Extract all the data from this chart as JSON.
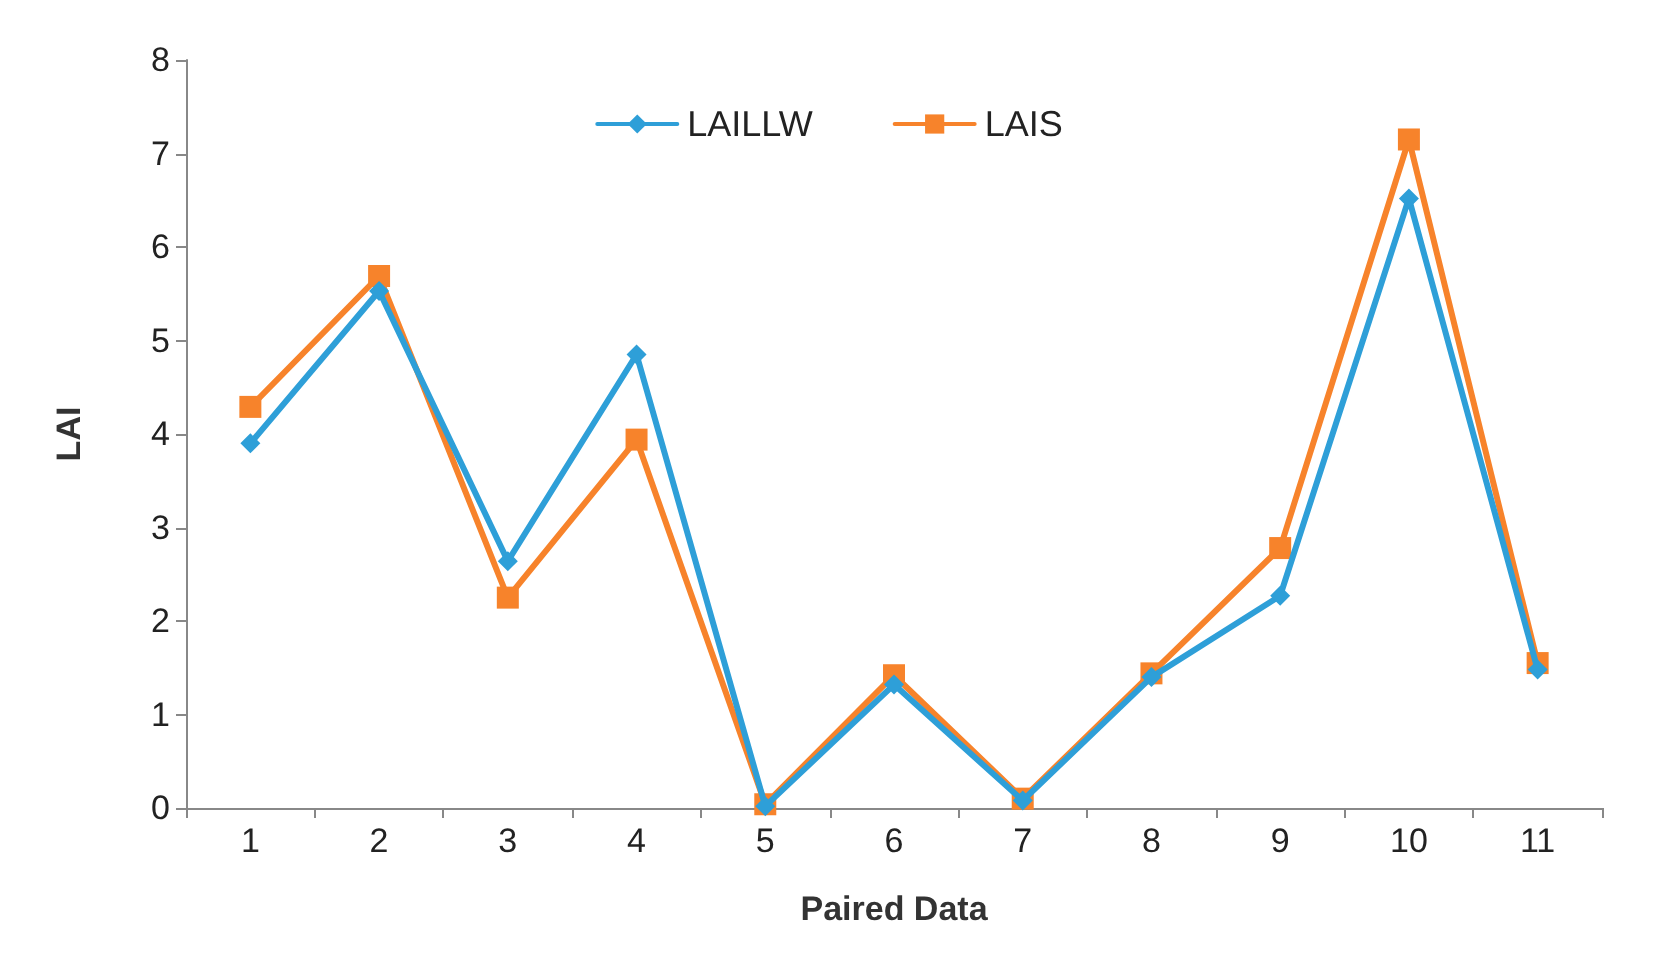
{
  "chart_data": {
    "type": "line",
    "xlabel": "Paired Data",
    "ylabel": "LAI",
    "categories": [
      "1",
      "2",
      "3",
      "4",
      "5",
      "6",
      "7",
      "8",
      "9",
      "10",
      "11"
    ],
    "series": [
      {
        "name": "LAILLW",
        "color": "#2e9fd8",
        "marker": "diamond",
        "values": [
          3.9,
          5.53,
          2.64,
          4.85,
          0.02,
          1.32,
          0.08,
          1.4,
          2.27,
          6.52,
          1.48
        ]
      },
      {
        "name": "LAIS",
        "color": "#f7832b",
        "marker": "square",
        "values": [
          4.29,
          5.69,
          2.25,
          3.94,
          0.04,
          1.42,
          0.1,
          1.44,
          2.78,
          7.15,
          1.55
        ]
      }
    ],
    "ylim": [
      0,
      8
    ],
    "yticks": [
      0,
      1,
      2,
      3,
      4,
      5,
      6,
      7,
      8
    ],
    "grid": false,
    "legend": "top",
    "line_style": "solid"
  }
}
